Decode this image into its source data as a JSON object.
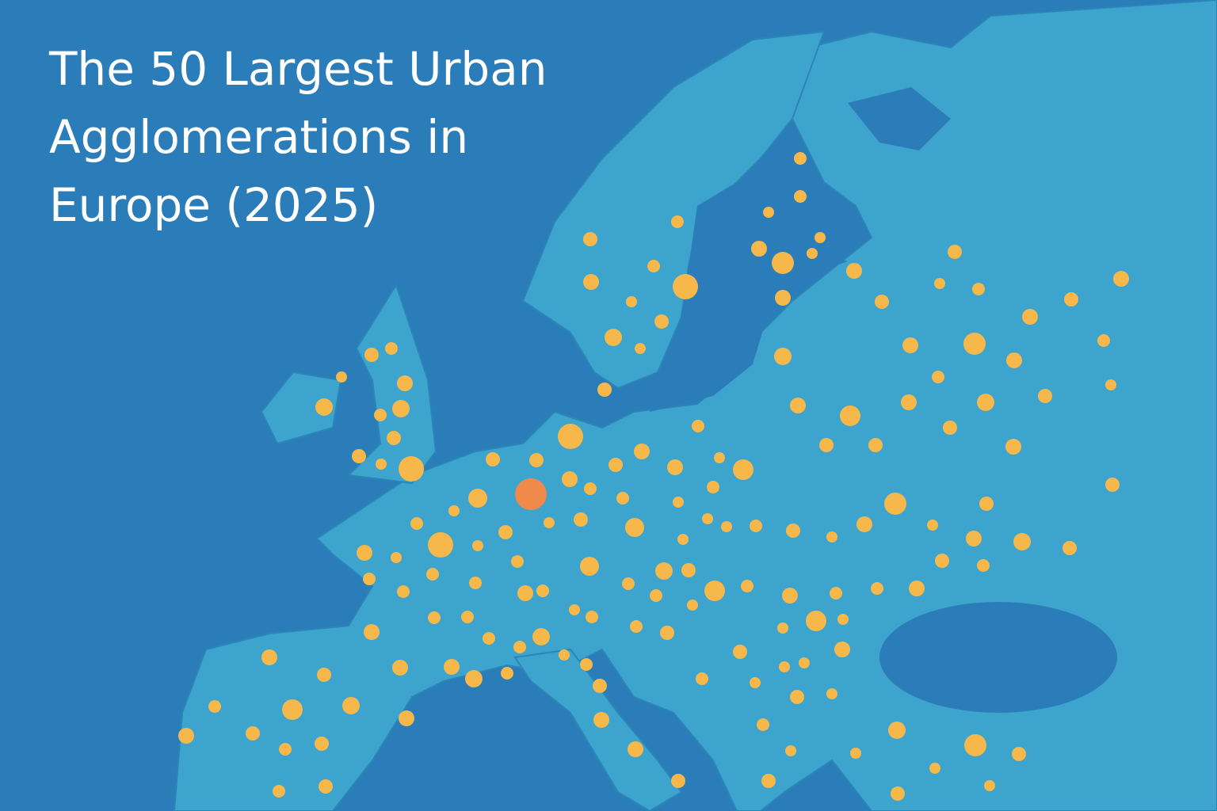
{
  "title": "The 50 Largest Urban Agglomerations in Europe (2025)"
}
